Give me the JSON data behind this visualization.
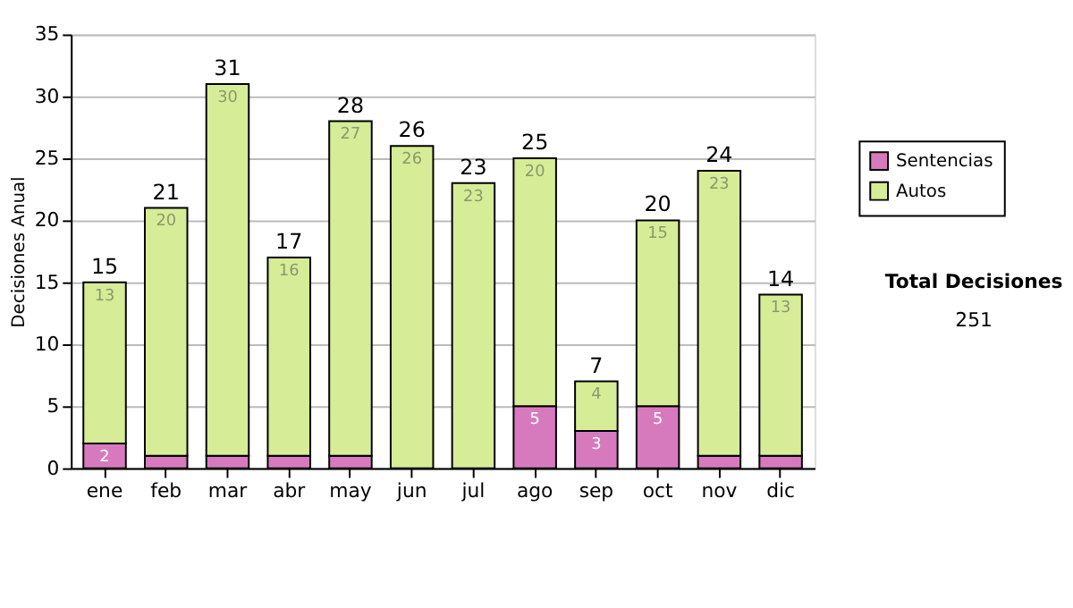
{
  "chart_data": {
    "type": "bar",
    "stacked": true,
    "ylabel": "Decisiones Anual",
    "categories": [
      "ene",
      "feb",
      "mar",
      "abr",
      "may",
      "jun",
      "jul",
      "ago",
      "sep",
      "oct",
      "nov",
      "dic"
    ],
    "series": [
      {
        "name": "Sentencias",
        "color": "#d77abd",
        "values": [
          2,
          1,
          1,
          1,
          1,
          0,
          0,
          5,
          3,
          5,
          1,
          1
        ],
        "value_labels": [
          "2",
          null,
          null,
          null,
          null,
          null,
          null,
          "5",
          "3",
          "5",
          null,
          null
        ]
      },
      {
        "name": "Autos",
        "color": "#d6ec96",
        "values": [
          13,
          20,
          30,
          16,
          27,
          26,
          23,
          20,
          4,
          15,
          23,
          13
        ],
        "value_labels": [
          "13",
          "20",
          "30",
          "16",
          "27",
          "26",
          "23",
          "20",
          "4",
          "15",
          "23",
          "13"
        ]
      }
    ],
    "totals": [
      "15",
      "21",
      "31",
      "17",
      "28",
      "26",
      "23",
      "25",
      "7",
      "20",
      "24",
      "14"
    ],
    "ylim": [
      0,
      35
    ],
    "yticks": [
      0,
      5,
      10,
      15,
      20,
      25,
      30,
      35
    ],
    "grid": "y",
    "legend": "right",
    "annotations": [
      "Total Decisiones",
      "251"
    ]
  }
}
